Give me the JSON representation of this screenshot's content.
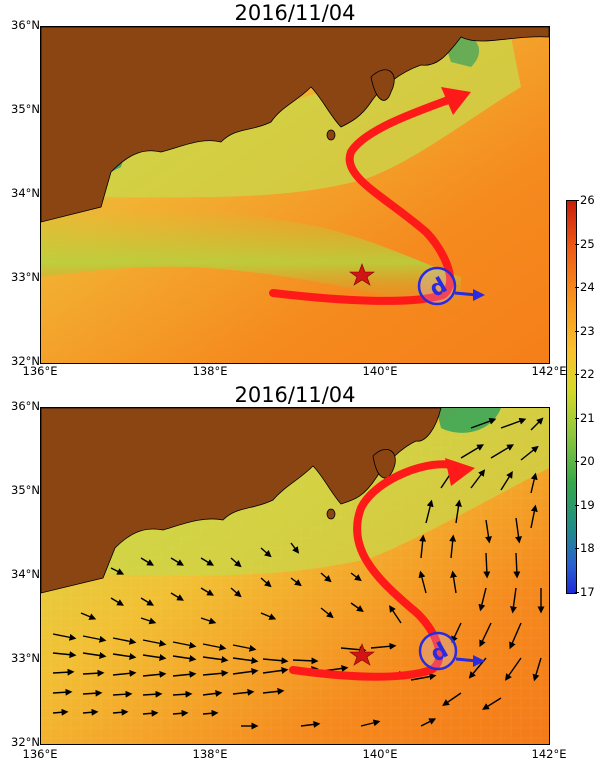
{
  "maps": [
    {
      "title": "2016/11/04",
      "layer": "sea surface temperature"
    },
    {
      "title": "2016/11/04",
      "layer": "sea surface temperature with current vectors"
    }
  ],
  "axes": {
    "lat_labels": [
      "36°N",
      "35°N",
      "34°N",
      "33°N",
      "32°N"
    ],
    "lon_labels": [
      "136°E",
      "138°E",
      "140°E",
      "142°E"
    ]
  },
  "colorbar": {
    "ticks": [
      "26",
      "25",
      "24",
      "23",
      "22",
      "21",
      "20",
      "19",
      "18",
      "17"
    ],
    "min": 17,
    "max": 26,
    "colors": [
      "#c81e0a",
      "#f05a14",
      "#f7941d",
      "#fbc02d",
      "#d7d928",
      "#8cc63f",
      "#35a84a",
      "#1f8c8c",
      "#2a5fd1",
      "#1e2ad8"
    ]
  },
  "markers": {
    "star": {
      "lon": 139.8,
      "lat": 33.1,
      "color": "#d11414"
    },
    "eddy_symbol": "d",
    "current_color": "#ff1a1a",
    "eddy_color": "#2a2ae0"
  },
  "colors": {
    "land": "#8b4513",
    "sea_warm": "#f7941d",
    "sea_cool": "#9acd32"
  }
}
